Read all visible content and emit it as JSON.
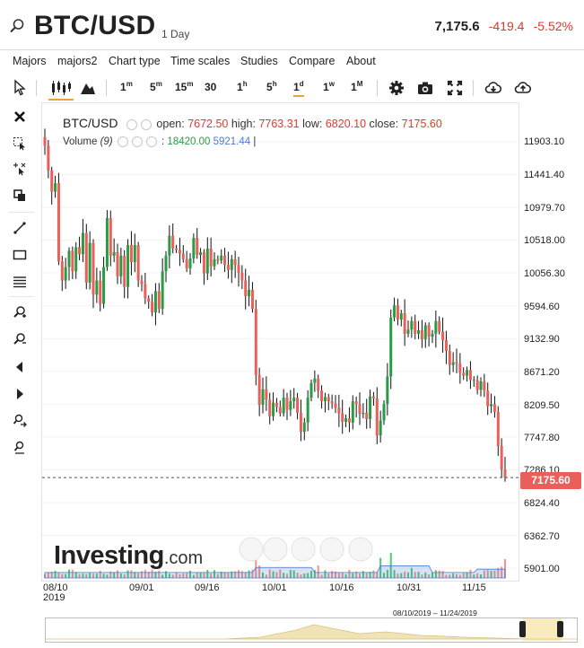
{
  "header": {
    "symbol": "BTC/USD",
    "period": "1 Day",
    "last": "7,175.6",
    "change": "-419.4",
    "change_pct": "-5.52%"
  },
  "menu": [
    "Majors",
    "majors2",
    "Chart type",
    "Time scales",
    "Studies",
    "Compare",
    "About"
  ],
  "timeframes": [
    {
      "base": "1",
      "unit": "m"
    },
    {
      "base": "5",
      "unit": "m"
    },
    {
      "base": "15",
      "unit": "m"
    },
    {
      "base": "30",
      "unit": ""
    },
    {
      "base": "1",
      "unit": "h"
    },
    {
      "base": "5",
      "unit": "h"
    },
    {
      "base": "1",
      "unit": "d"
    },
    {
      "base": "1",
      "unit": "w"
    },
    {
      "base": "1",
      "unit": "M"
    }
  ],
  "active_timeframe": "1d",
  "icons": {
    "search": "search-icon",
    "cursor": "cursor-icon",
    "candles": "candlestick-icon",
    "mountain": "area-chart-icon",
    "settings": "gear-icon",
    "camera": "camera-icon",
    "fullscreen": "fullscreen-icon",
    "download": "download-icon",
    "upload": "upload-icon"
  },
  "legend": {
    "name": "BTC/USD",
    "open_label": "open:",
    "open": "7672.50",
    "high_label": "high:",
    "high": "7763.31",
    "low_label": "low:",
    "low": "6820.10",
    "close_label": "close:",
    "close": "7175.60",
    "volume_label": "Volume",
    "volume_period": "(9)",
    "volume_value": "18420.00",
    "volume_ma": "5921.44"
  },
  "watermark": {
    "brand": "Investing",
    "suffix": ".com"
  },
  "navigator": {
    "range": "08/10/2019 – 11/24/2019"
  },
  "colors": {
    "up": "#2a9a43",
    "down": "#e95f5a",
    "volume_ma": "#4a7bd0",
    "accent": "#e8a33d"
  },
  "chart_data": {
    "type": "candlestick",
    "title": "BTC/USD",
    "ylim": [
      5700,
      12250
    ],
    "yticks": [
      "11903.10",
      "11441.40",
      "10979.70",
      "10518.00",
      "10056.30",
      "9594.60",
      "9132.90",
      "8671.20",
      "8209.50",
      "7747.80",
      "7286.10",
      "6824.40",
      "6362.70",
      "5901.00"
    ],
    "xticks": [
      {
        "label": "08/10",
        "sub": "2019",
        "date": "2019-08-10"
      },
      {
        "label": "09/01",
        "sub": "",
        "date": "2019-09-01"
      },
      {
        "label": "09/16",
        "sub": "",
        "date": "2019-09-16"
      },
      {
        "label": "10/01",
        "sub": "",
        "date": "2019-10-01"
      },
      {
        "label": "10/16",
        "sub": "",
        "date": "2019-10-16"
      },
      {
        "label": "10/31",
        "sub": "",
        "date": "2019-10-31"
      },
      {
        "label": "11/15",
        "sub": "",
        "date": "2019-11-15"
      }
    ],
    "last_price": "7175.60",
    "closes": [
      11850,
      11500,
      11200,
      11320,
      10220,
      9950,
      10140,
      10370,
      10080,
      10420,
      10320,
      10620,
      9920,
      10480,
      9750,
      9950,
      9620,
      10140,
      10830,
      10300,
      10350,
      10010,
      10300,
      9860,
      10450,
      10210,
      10450,
      9950,
      9900,
      9700,
      9650,
      9500,
      9800,
      9550,
      10080,
      10300,
      10580,
      10400,
      10380,
      10330,
      10250,
      10120,
      10260,
      10550,
      10310,
      10350,
      10050,
      10400,
      10150,
      10250,
      10230,
      10300,
      10170,
      10100,
      10250,
      10170,
      10060,
      9950,
      9730,
      9820,
      9550,
      8620,
      8200,
      8420,
      8270,
      8040,
      8230,
      8170,
      8080,
      8300,
      8130,
      8250,
      8300,
      8090,
      7820,
      7950,
      8300,
      8510,
      8570,
      8400,
      8250,
      8310,
      8250,
      8220,
      8160,
      8080,
      7960,
      8010,
      7950,
      8250,
      8210,
      8070,
      8090,
      8000,
      8320,
      8290,
      7770,
      7980,
      8210,
      8600,
      9430,
      9600,
      9400,
      9490,
      9200,
      9260,
      9380,
      9200,
      9250,
      9120,
      9320,
      9160,
      9200,
      9380,
      9230,
      9110,
      8960,
      8760,
      8800,
      8780,
      8650,
      8610,
      8690,
      8550,
      8550,
      8410,
      8530,
      8400,
      8180,
      8210,
      8100,
      7620,
      7290,
      7175.6
    ],
    "volume_max": 18420
  }
}
